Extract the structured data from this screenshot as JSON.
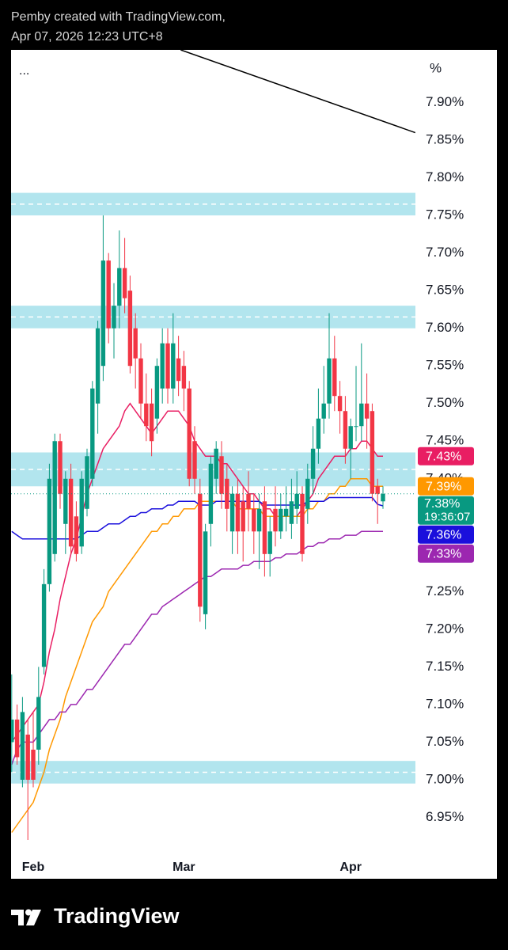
{
  "header": {
    "line1": "Pemby created with TradingView.com,",
    "line2": "Apr 07, 2026 12:23 UTC+8"
  },
  "footer": {
    "brand": "TradingView"
  },
  "chart_data": {
    "type": "candlestick",
    "menu": "...",
    "axis_unit": "%",
    "categories": [
      null,
      null,
      null,
      null,
      "Feb",
      null,
      null,
      null,
      null,
      null,
      null,
      null,
      null,
      null,
      null,
      null,
      null,
      null,
      null,
      null,
      null,
      null,
      null,
      null,
      null,
      null,
      null,
      null,
      null,
      null,
      null,
      null,
      "Mar",
      null,
      null,
      null,
      null,
      null,
      null,
      null,
      null,
      null,
      null,
      null,
      null,
      null,
      null,
      null,
      null,
      null,
      null,
      null,
      null,
      null,
      null,
      null,
      null,
      null,
      null,
      null,
      null,
      null,
      null,
      "Apr",
      null,
      null,
      null,
      null,
      null,
      null
    ],
    "open": [
      7.05,
      7.08,
      7.0,
      7.06,
      7.04,
      7.04,
      7.15,
      7.26,
      7.3,
      7.45,
      7.34,
      7.4,
      7.35,
      7.31,
      7.36,
      7.4,
      7.5,
      7.55,
      7.69,
      7.6,
      7.63,
      7.68,
      7.65,
      7.6,
      7.56,
      7.5,
      7.5,
      7.48,
      7.52,
      7.58,
      7.52,
      7.56,
      7.55,
      7.52,
      7.45,
      7.38,
      7.22,
      7.34,
      7.4,
      7.43,
      7.4,
      7.33,
      7.38,
      7.37,
      7.38,
      7.36,
      7.33,
      7.37,
      7.3,
      7.36,
      7.33,
      7.35,
      7.34,
      7.36,
      7.38,
      7.36,
      7.4,
      7.44,
      7.48,
      7.5,
      7.56,
      7.51,
      7.49,
      7.44,
      7.47,
      7.47,
      7.5,
      7.49,
      7.39,
      7.37
    ],
    "high": [
      7.14,
      7.1,
      7.11,
      7.08,
      7.09,
      7.15,
      7.28,
      7.42,
      7.46,
      7.46,
      7.41,
      7.42,
      7.37,
      7.41,
      7.44,
      7.53,
      7.61,
      7.75,
      7.7,
      7.66,
      7.73,
      7.72,
      7.67,
      7.62,
      7.58,
      7.54,
      7.52,
      7.56,
      7.6,
      7.6,
      7.62,
      7.59,
      7.57,
      7.53,
      7.47,
      7.4,
      7.34,
      7.43,
      7.45,
      7.45,
      7.42,
      7.39,
      7.4,
      7.39,
      7.41,
      7.38,
      7.38,
      7.39,
      7.35,
      7.39,
      7.38,
      7.39,
      7.4,
      7.41,
      7.39,
      7.42,
      7.47,
      7.52,
      7.55,
      7.62,
      7.59,
      7.53,
      7.51,
      7.48,
      7.55,
      7.58,
      7.54,
      7.5,
      7.4,
      7.39
    ],
    "low": [
      7.01,
      7.02,
      6.99,
      6.92,
      6.99,
      7.02,
      7.14,
      7.25,
      7.29,
      7.36,
      7.3,
      7.3,
      7.29,
      7.3,
      7.35,
      7.39,
      7.46,
      7.53,
      7.58,
      7.56,
      7.6,
      7.62,
      7.54,
      7.52,
      7.48,
      7.45,
      7.43,
      7.46,
      7.5,
      7.5,
      7.5,
      7.51,
      7.49,
      7.39,
      7.38,
      7.21,
      7.2,
      7.31,
      7.38,
      7.36,
      7.33,
      7.3,
      7.3,
      7.29,
      7.33,
      7.3,
      7.28,
      7.27,
      7.27,
      7.31,
      7.32,
      7.33,
      7.32,
      7.34,
      7.29,
      7.34,
      7.38,
      7.42,
      7.46,
      7.48,
      7.49,
      7.46,
      7.42,
      7.4,
      7.45,
      7.45,
      7.44,
      7.37,
      7.34,
      7.36
    ],
    "close": [
      7.08,
      7.03,
      7.09,
      7.0,
      7.0,
      7.11,
      7.26,
      7.4,
      7.45,
      7.38,
      7.4,
      7.31,
      7.3,
      7.4,
      7.43,
      7.52,
      7.6,
      7.69,
      7.6,
      7.63,
      7.68,
      7.64,
      7.55,
      7.56,
      7.5,
      7.47,
      7.45,
      7.55,
      7.58,
      7.52,
      7.58,
      7.53,
      7.52,
      7.4,
      7.4,
      7.23,
      7.33,
      7.42,
      7.44,
      7.38,
      7.36,
      7.38,
      7.33,
      7.33,
      7.36,
      7.33,
      7.36,
      7.3,
      7.33,
      7.33,
      7.36,
      7.36,
      7.37,
      7.38,
      7.3,
      7.4,
      7.44,
      7.48,
      7.5,
      7.56,
      7.51,
      7.49,
      7.44,
      7.47,
      7.47,
      7.5,
      7.48,
      7.38,
      7.38,
      7.38
    ],
    "up_color": "#089981",
    "down_color": "#f23645",
    "last_label": "7.38%",
    "countdown": "19:36:07",
    "series": [
      {
        "color": "#e91e63",
        "price_label": "7.43%",
        "values": [
          7.05,
          7.06,
          7.07,
          7.08,
          7.09,
          7.1,
          7.13,
          7.17,
          7.2,
          7.24,
          7.27,
          7.3,
          7.32,
          7.35,
          7.38,
          7.4,
          7.42,
          7.44,
          7.45,
          7.46,
          7.47,
          7.49,
          7.5,
          7.49,
          7.48,
          7.47,
          7.46,
          7.47,
          7.48,
          7.49,
          7.49,
          7.49,
          7.48,
          7.47,
          7.45,
          7.44,
          7.43,
          7.43,
          7.43,
          7.42,
          7.42,
          7.41,
          7.4,
          7.39,
          7.38,
          7.38,
          7.37,
          7.36,
          7.36,
          7.35,
          7.35,
          7.35,
          7.35,
          7.35,
          7.36,
          7.37,
          7.38,
          7.4,
          7.41,
          7.42,
          7.43,
          7.43,
          7.43,
          7.44,
          7.44,
          7.45,
          7.45,
          7.44,
          7.43,
          7.43
        ]
      },
      {
        "color": "#ff9800",
        "price_label": "7.39%",
        "values": [
          6.93,
          6.94,
          6.95,
          6.96,
          6.97,
          6.99,
          7.01,
          7.04,
          7.06,
          7.08,
          7.11,
          7.13,
          7.15,
          7.17,
          7.19,
          7.21,
          7.22,
          7.23,
          7.25,
          7.26,
          7.27,
          7.28,
          7.29,
          7.3,
          7.31,
          7.32,
          7.33,
          7.33,
          7.34,
          7.34,
          7.35,
          7.35,
          7.36,
          7.36,
          7.36,
          7.37,
          7.37,
          7.37,
          7.37,
          7.37,
          7.37,
          7.37,
          7.36,
          7.36,
          7.36,
          7.36,
          7.36,
          7.35,
          7.35,
          7.35,
          7.35,
          7.35,
          7.35,
          7.35,
          7.35,
          7.36,
          7.36,
          7.37,
          7.37,
          7.38,
          7.38,
          7.39,
          7.39,
          7.4,
          7.4,
          7.4,
          7.4,
          7.39,
          7.39,
          7.39
        ]
      },
      {
        "color": "#1a0fdc",
        "price_label": "7.36%",
        "values": [
          7.33,
          7.325,
          7.32,
          7.32,
          7.32,
          7.32,
          7.32,
          7.32,
          7.32,
          7.32,
          7.32,
          7.32,
          7.32,
          7.325,
          7.33,
          7.33,
          7.33,
          7.335,
          7.34,
          7.34,
          7.34,
          7.345,
          7.35,
          7.35,
          7.355,
          7.355,
          7.36,
          7.36,
          7.36,
          7.365,
          7.365,
          7.37,
          7.37,
          7.37,
          7.37,
          7.365,
          7.365,
          7.365,
          7.37,
          7.37,
          7.37,
          7.37,
          7.37,
          7.37,
          7.37,
          7.37,
          7.37,
          7.365,
          7.365,
          7.365,
          7.365,
          7.365,
          7.365,
          7.365,
          7.365,
          7.37,
          7.37,
          7.37,
          7.37,
          7.375,
          7.375,
          7.375,
          7.375,
          7.375,
          7.375,
          7.375,
          7.375,
          7.375,
          7.366,
          7.364
        ]
      },
      {
        "color": "#9c27b0",
        "price_label": "7.33%",
        "values": [
          7.02,
          7.04,
          7.05,
          7.05,
          7.05,
          7.06,
          7.07,
          7.08,
          7.08,
          7.09,
          7.09,
          7.1,
          7.1,
          7.11,
          7.12,
          7.12,
          7.13,
          7.14,
          7.15,
          7.16,
          7.17,
          7.18,
          7.18,
          7.19,
          7.2,
          7.21,
          7.22,
          7.22,
          7.23,
          7.235,
          7.24,
          7.245,
          7.25,
          7.255,
          7.26,
          7.265,
          7.27,
          7.27,
          7.275,
          7.28,
          7.28,
          7.28,
          7.28,
          7.285,
          7.285,
          7.29,
          7.29,
          7.29,
          7.29,
          7.295,
          7.295,
          7.3,
          7.3,
          7.3,
          7.305,
          7.31,
          7.31,
          7.315,
          7.315,
          7.32,
          7.32,
          7.32,
          7.325,
          7.325,
          7.325,
          7.33,
          7.33,
          7.33,
          7.33,
          7.33
        ]
      }
    ],
    "zones": [
      [
        7.75,
        7.78
      ],
      [
        7.6,
        7.63
      ],
      [
        7.39,
        7.435
      ],
      [
        6.995,
        7.025
      ]
    ],
    "zone_color": "#b2e5ee",
    "trendline": {
      "x": [
        31.4,
        75
      ],
      "y": [
        7.97,
        7.86
      ]
    },
    "ylim": [
      6.9,
      7.97
    ],
    "yticks": [
      {
        "value": 6.95,
        "label": "6.95%"
      },
      {
        "value": 7.0,
        "label": "7.00%"
      },
      {
        "value": 7.05,
        "label": "7.05%"
      },
      {
        "value": 7.1,
        "label": "7.10%"
      },
      {
        "value": 7.15,
        "label": "7.15%"
      },
      {
        "value": 7.2,
        "label": "7.20%"
      },
      {
        "value": 7.25,
        "label": "7.25%"
      },
      {
        "value": 7.3,
        "label": "7.30%"
      },
      {
        "value": 7.35,
        "label": "7.35%"
      },
      {
        "value": 7.4,
        "label": "7.40%"
      },
      {
        "value": 7.45,
        "label": "7.45%"
      },
      {
        "value": 7.5,
        "label": "7.50%"
      },
      {
        "value": 7.55,
        "label": "7.55%"
      },
      {
        "value": 7.6,
        "label": "7.60%"
      },
      {
        "value": 7.65,
        "label": "7.65%"
      },
      {
        "value": 7.7,
        "label": "7.70%"
      },
      {
        "value": 7.75,
        "label": "7.75%"
      },
      {
        "value": 7.8,
        "label": "7.80%"
      },
      {
        "value": 7.85,
        "label": "7.85%"
      },
      {
        "value": 7.9,
        "label": "7.90%"
      }
    ],
    "grid": false
  }
}
